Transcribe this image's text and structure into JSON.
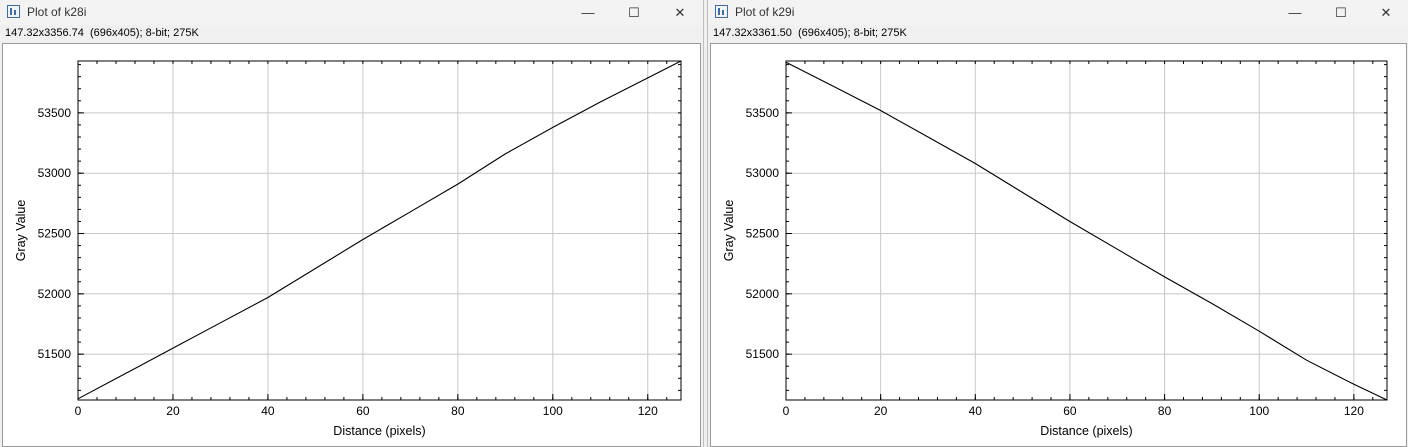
{
  "windows": [
    {
      "title": "Plot of k28i",
      "info": "147.32x3356.74  (696x405); 8-bit; 275K",
      "controls": {
        "minimize": "—",
        "maximize": "☐",
        "close": "✕"
      },
      "chart_data": {
        "type": "line",
        "title": "",
        "xlabel": "Distance (pixels)",
        "ylabel": "Gray Value",
        "xlim": [
          0,
          127
        ],
        "ylim": [
          51120,
          53930
        ],
        "xticks": [
          0,
          20,
          40,
          60,
          80,
          100,
          120
        ],
        "yticks": [
          51500,
          52000,
          52500,
          53000,
          53500
        ],
        "grid": true,
        "x": [
          0,
          10,
          20,
          30,
          40,
          50,
          60,
          70,
          80,
          90,
          100,
          110,
          120,
          127
        ],
        "y": [
          51130,
          51340,
          51550,
          51760,
          51970,
          52210,
          52450,
          52680,
          52910,
          53160,
          53380,
          53590,
          53790,
          53930
        ]
      }
    },
    {
      "title": "Plot of k29i",
      "info": "147.32x3361.50  (696x405); 8-bit; 275K",
      "controls": {
        "minimize": "—",
        "maximize": "☐",
        "close": "✕"
      },
      "chart_data": {
        "type": "line",
        "title": "",
        "xlabel": "Distance (pixels)",
        "ylabel": "Gray Value",
        "xlim": [
          0,
          127
        ],
        "ylim": [
          51120,
          53930
        ],
        "xticks": [
          0,
          20,
          40,
          60,
          80,
          100,
          120
        ],
        "yticks": [
          51500,
          52000,
          52500,
          53000,
          53500
        ],
        "grid": true,
        "x": [
          0,
          10,
          20,
          30,
          40,
          50,
          60,
          70,
          80,
          90,
          100,
          110,
          120,
          127
        ],
        "y": [
          53920,
          53720,
          53520,
          53300,
          53080,
          52840,
          52600,
          52370,
          52140,
          51920,
          51690,
          51450,
          51250,
          51120
        ]
      }
    }
  ]
}
